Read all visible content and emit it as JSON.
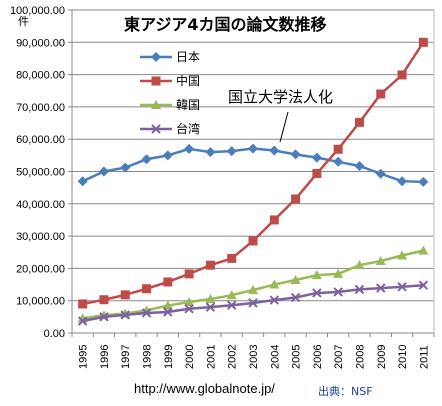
{
  "chart_data": {
    "type": "line",
    "title": "東アジア4カ国の論文数推移",
    "ylabel": "件",
    "xlabel": "",
    "ylim": [
      0,
      100000
    ],
    "yticks": [
      "0.00",
      "10,000.00",
      "20,000.00",
      "30,000.00",
      "40,000.00",
      "50,000.00",
      "60,000.00",
      "70,000.00",
      "80,000.00",
      "90,000.00",
      "100,000.00"
    ],
    "categories": [
      "1995",
      "1996",
      "1997",
      "1998",
      "1999",
      "2000",
      "2001",
      "2002",
      "2003",
      "2004",
      "2005",
      "2006",
      "2007",
      "2008",
      "2009",
      "2010",
      "2011"
    ],
    "series": [
      {
        "name": "日本",
        "color": "#4a7ebb",
        "marker": "diamond",
        "values": [
          47000,
          50000,
          51200,
          53800,
          55000,
          57000,
          56000,
          56300,
          57100,
          56500,
          55300,
          54300,
          53000,
          51700,
          49300,
          47000,
          46800
        ]
      },
      {
        "name": "中国",
        "color": "#be4b48",
        "marker": "square",
        "values": [
          9000,
          10300,
          11800,
          13700,
          15800,
          18300,
          21000,
          23100,
          28500,
          35000,
          41500,
          49400,
          56900,
          65200,
          74000,
          79900,
          90000
        ]
      },
      {
        "name": "韓国",
        "color": "#98b954",
        "marker": "triangle",
        "values": [
          4500,
          5500,
          6000,
          7000,
          8500,
          9600,
          10500,
          11700,
          13300,
          15000,
          16400,
          17900,
          18300,
          21000,
          22300,
          24000,
          25500
        ]
      },
      {
        "name": "台湾",
        "color": "#7d60a0",
        "marker": "x",
        "values": [
          3700,
          5000,
          5600,
          6200,
          6500,
          7500,
          8000,
          8600,
          9300,
          10200,
          11000,
          12400,
          12700,
          13500,
          13900,
          14300,
          14800
        ]
      }
    ],
    "annotation": "国立大学法人化",
    "grid": true,
    "legend": "upper-left"
  },
  "footer": {
    "url": "http://www.globalnote.jp/",
    "source": "出典：NSF"
  }
}
